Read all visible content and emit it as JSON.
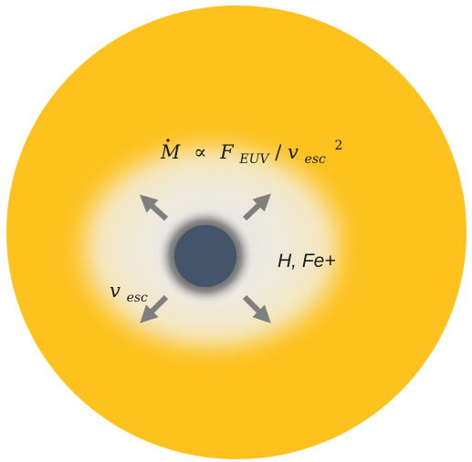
{
  "colors": {
    "star_disk": "#FDC21E",
    "glow_inner": "#E6E6E6",
    "glow_outer": "#F3E6BE",
    "planet": "#44546A",
    "planet_halo": "#6E6E6E",
    "arrow": "#7F7F7F"
  },
  "labels": {
    "mass_loss": {
      "mdot": "M",
      "prop": "∝",
      "flux": "F",
      "flux_sub": "EUV",
      "slash": "/",
      "vel": "v",
      "vel_sub": "esc",
      "exp": "2"
    },
    "escape_velocity": {
      "v": "v",
      "sub": "esc"
    },
    "species": "H, Fe+"
  },
  "arrows": [
    "outflow-arrow-up-left",
    "outflow-arrow-up-right",
    "outflow-arrow-down-left",
    "outflow-arrow-down-right"
  ]
}
